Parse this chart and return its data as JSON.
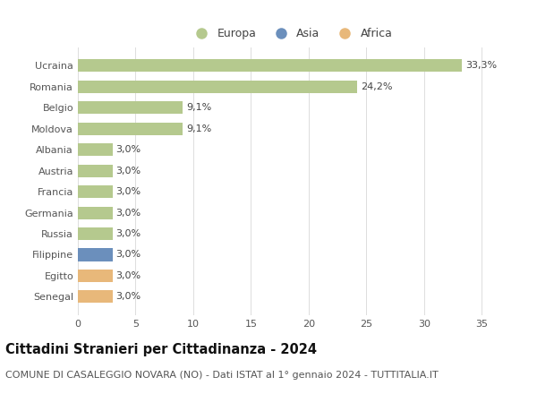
{
  "countries": [
    "Ucraina",
    "Romania",
    "Belgio",
    "Moldova",
    "Albania",
    "Austria",
    "Francia",
    "Germania",
    "Russia",
    "Filippine",
    "Egitto",
    "Senegal"
  ],
  "values": [
    33.3,
    24.2,
    9.1,
    9.1,
    3.0,
    3.0,
    3.0,
    3.0,
    3.0,
    3.0,
    3.0,
    3.0
  ],
  "labels": [
    "33,3%",
    "24,2%",
    "9,1%",
    "9,1%",
    "3,0%",
    "3,0%",
    "3,0%",
    "3,0%",
    "3,0%",
    "3,0%",
    "3,0%",
    "3,0%"
  ],
  "continents": [
    "Europa",
    "Europa",
    "Europa",
    "Europa",
    "Europa",
    "Europa",
    "Europa",
    "Europa",
    "Europa",
    "Asia",
    "Africa",
    "Africa"
  ],
  "colors": {
    "Europa": "#b5c98e",
    "Asia": "#6b8fbc",
    "Africa": "#e8b87a"
  },
  "legend_entries": [
    {
      "label": "Europa",
      "color": "#b5c98e"
    },
    {
      "label": "Asia",
      "color": "#6b8fbc"
    },
    {
      "label": "Africa",
      "color": "#e8b87a"
    }
  ],
  "xlim": [
    0,
    37
  ],
  "xticks": [
    0,
    5,
    10,
    15,
    20,
    25,
    30,
    35
  ],
  "title": "Cittadini Stranieri per Cittadinanza - 2024",
  "subtitle": "COMUNE DI CASALEGGIO NOVARA (NO) - Dati ISTAT al 1° gennaio 2024 - TUTTITALIA.IT",
  "background_color": "#ffffff",
  "grid_color": "#dddddd",
  "bar_height": 0.6,
  "title_fontsize": 10.5,
  "subtitle_fontsize": 8,
  "label_fontsize": 8,
  "tick_fontsize": 8,
  "legend_fontsize": 9
}
